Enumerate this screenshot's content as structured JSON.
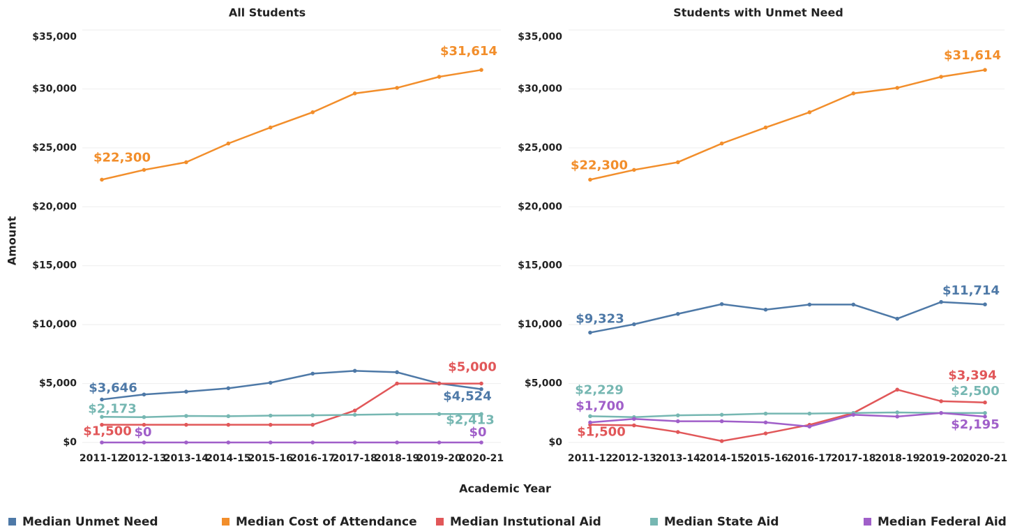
{
  "chart_data": [
    {
      "type": "line",
      "title": "All Students",
      "y_label": "Amount",
      "x_label": "Academic Year",
      "categories": [
        "2011-12",
        "2012-13",
        "2013-14",
        "2014-15",
        "2015-16",
        "2016-17",
        "2017-18",
        "2018-19",
        "2019-20",
        "2020-21"
      ],
      "ylim": [
        0,
        35000
      ],
      "yticks": [
        {
          "value": 0,
          "label": "$0"
        },
        {
          "value": 5000,
          "label": "$5,000"
        },
        {
          "value": 10000,
          "label": "$10,000"
        },
        {
          "value": 15000,
          "label": "$15,000"
        },
        {
          "value": 20000,
          "label": "$20,000"
        },
        {
          "value": 25000,
          "label": "$25,000"
        },
        {
          "value": 30000,
          "label": "$30,000"
        },
        {
          "value": 35000,
          "label": "$35,000"
        }
      ],
      "grid": true,
      "series": [
        {
          "name": "Median Unmet Need",
          "color": "#4e79a7",
          "values": [
            3646,
            4070,
            4310,
            4600,
            5070,
            5840,
            6080,
            5960,
            5010,
            4524
          ],
          "value_labels": [
            "$3,646",
            null,
            null,
            null,
            null,
            null,
            null,
            null,
            null,
            "$4,524"
          ]
        },
        {
          "name": "Median Cost of Attendance",
          "color": "#f28e2b",
          "values": [
            22300,
            23130,
            23780,
            25370,
            26730,
            28020,
            29620,
            30090,
            31030,
            31614
          ],
          "value_labels": [
            "$22,300",
            null,
            null,
            null,
            null,
            null,
            null,
            null,
            null,
            "$31,614"
          ]
        },
        {
          "name": "Median Instutional Aid",
          "color": "#e15759",
          "values": [
            1500,
            1500,
            1500,
            1500,
            1500,
            1500,
            2710,
            5000,
            5000,
            5000
          ],
          "value_labels": [
            "$1,500",
            null,
            null,
            null,
            null,
            null,
            null,
            null,
            null,
            "$5,000"
          ]
        },
        {
          "name": "Median State Aid",
          "color": "#76b7b2",
          "values": [
            2173,
            2150,
            2250,
            2230,
            2280,
            2300,
            2350,
            2400,
            2410,
            2413
          ],
          "value_labels": [
            "$2,173",
            null,
            null,
            null,
            null,
            null,
            null,
            null,
            null,
            "$2,413"
          ]
        },
        {
          "name": "Median Federal Aid",
          "color": "#a05fc9",
          "values": [
            0,
            0,
            0,
            0,
            0,
            0,
            0,
            0,
            0,
            0
          ],
          "value_labels": [
            "$0",
            null,
            null,
            null,
            null,
            null,
            null,
            null,
            null,
            "$0"
          ]
        }
      ]
    },
    {
      "type": "line",
      "title": "Students with Unmet Need",
      "categories": [
        "2011-12",
        "2012-13",
        "2013-14",
        "2014-15",
        "2015-16",
        "2016-17",
        "2017-18",
        "2018-19",
        "2019-20",
        "2020-21"
      ],
      "ylim": [
        0,
        35000
      ],
      "yticks": [
        {
          "value": 0,
          "label": "$0"
        },
        {
          "value": 5000,
          "label": "$5,000"
        },
        {
          "value": 10000,
          "label": "$10,000"
        },
        {
          "value": 15000,
          "label": "$15,000"
        },
        {
          "value": 20000,
          "label": "$20,000"
        },
        {
          "value": 25000,
          "label": "$25,000"
        },
        {
          "value": 30000,
          "label": "$30,000"
        },
        {
          "value": 35000,
          "label": "$35,000"
        }
      ],
      "grid": true,
      "series": [
        {
          "name": "Median Unmet Need",
          "color": "#4e79a7",
          "values": [
            9323,
            10030,
            10910,
            11740,
            11270,
            11700,
            11700,
            10500,
            11920,
            11714
          ],
          "value_labels": [
            "$9,323",
            null,
            null,
            null,
            null,
            null,
            null,
            null,
            null,
            "$11,714"
          ]
        },
        {
          "name": "Median Cost of Attendance",
          "color": "#f28e2b",
          "values": [
            22300,
            23130,
            23780,
            25370,
            26730,
            28020,
            29620,
            30090,
            31030,
            31614
          ],
          "value_labels": [
            "$22,300",
            null,
            null,
            null,
            null,
            null,
            null,
            null,
            null,
            "$31,614"
          ]
        },
        {
          "name": "Median Instutional Aid",
          "color": "#e15759",
          "values": [
            1500,
            1450,
            885,
            118,
            767,
            1500,
            2500,
            4480,
            3500,
            3394
          ],
          "value_labels": [
            "$1,500",
            null,
            null,
            null,
            null,
            null,
            null,
            null,
            null,
            "$3,394"
          ]
        },
        {
          "name": "Median State Aid",
          "color": "#76b7b2",
          "values": [
            2229,
            2150,
            2300,
            2350,
            2450,
            2450,
            2500,
            2550,
            2500,
            2500
          ],
          "value_labels": [
            "$2,229",
            null,
            null,
            null,
            null,
            null,
            null,
            null,
            null,
            "$2,500"
          ]
        },
        {
          "name": "Median Federal Aid",
          "color": "#a05fc9",
          "values": [
            1700,
            2000,
            1800,
            1800,
            1700,
            1350,
            2350,
            2200,
            2500,
            2195
          ],
          "value_labels": [
            "$1,700",
            null,
            null,
            null,
            null,
            null,
            null,
            null,
            null,
            "$2,195"
          ]
        }
      ]
    }
  ]
}
